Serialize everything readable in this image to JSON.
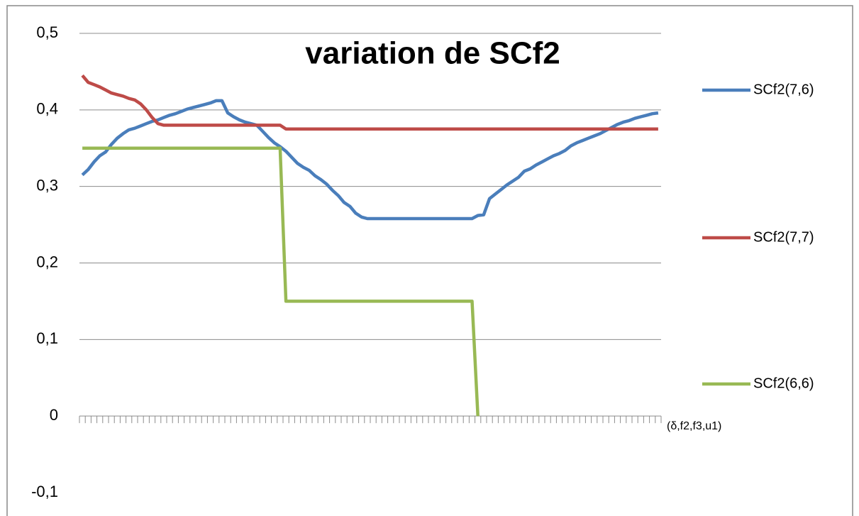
{
  "chart_data": {
    "type": "line",
    "title": "variation de SCf2",
    "x_label": "(δ,f2,f3,u1)",
    "categories": [
      null,
      null,
      null,
      null,
      null,
      null,
      null,
      null,
      null,
      null,
      null,
      null,
      null,
      null,
      null,
      null,
      null,
      null,
      null,
      null,
      null,
      null,
      null,
      null,
      null,
      null,
      null,
      null,
      null,
      null,
      null,
      null,
      null,
      null,
      null,
      null,
      null,
      null,
      null,
      null,
      null,
      null,
      null,
      null,
      null,
      null,
      null,
      null,
      null,
      null,
      null,
      null,
      null,
      null,
      null,
      null,
      null,
      null,
      null,
      null,
      null,
      null,
      null,
      null,
      null,
      null,
      null,
      null,
      null,
      null,
      null,
      null,
      null,
      null,
      null,
      null,
      null,
      null,
      null,
      null,
      null,
      null,
      null,
      null,
      null,
      null,
      null,
      null,
      null,
      null,
      null,
      null,
      null,
      null,
      null,
      null,
      null,
      null,
      null,
      null
    ],
    "ylim": [
      -0.1,
      0.5
    ],
    "yticks": [
      {
        "value": -0.1,
        "label": "-0,1"
      },
      0,
      {
        "value": 0.1,
        "label": "0,1"
      },
      {
        "value": 0.2,
        "label": "0,2"
      },
      {
        "value": 0.3,
        "label": "0,3"
      },
      {
        "value": 0.4,
        "label": "0,4"
      },
      {
        "value": 0.5,
        "label": "0,5"
      }
    ],
    "grid": true,
    "legend": "right",
    "series": [
      {
        "name": "SCf2(7,6)",
        "color": "#4a7ebb",
        "values": [
          0.315,
          0.322,
          0.332,
          0.34,
          0.345,
          0.355,
          0.363,
          0.369,
          0.374,
          0.376,
          0.379,
          0.382,
          0.385,
          0.387,
          0.39,
          0.393,
          0.395,
          0.398,
          0.401,
          0.403,
          0.405,
          0.407,
          0.409,
          0.412,
          0.412,
          0.396,
          0.391,
          0.387,
          0.384,
          0.382,
          0.38,
          0.372,
          0.364,
          0.357,
          0.352,
          0.346,
          0.338,
          0.33,
          0.325,
          0.321,
          0.314,
          0.309,
          0.303,
          0.295,
          0.288,
          0.279,
          0.274,
          0.265,
          0.26,
          0.258,
          0.258,
          0.258,
          0.258,
          0.258,
          0.258,
          0.258,
          0.258,
          0.258,
          0.258,
          0.258,
          0.258,
          0.258,
          0.258,
          0.258,
          0.258,
          0.258,
          0.258,
          0.258,
          0.262,
          0.263,
          0.284,
          0.29,
          0.296,
          0.302,
          0.307,
          0.312,
          0.32,
          0.323,
          0.328,
          0.332,
          0.336,
          0.34,
          0.343,
          0.347,
          0.353,
          0.357,
          0.36,
          0.363,
          0.366,
          0.369,
          0.373,
          0.377,
          0.381,
          0.384,
          0.386,
          0.389,
          0.391,
          0.393,
          0.395,
          0.396
        ]
      },
      {
        "name": "SCf2(7,7)",
        "color": "#be4b48",
        "values": [
          0.445,
          0.436,
          0.433,
          0.43,
          0.426,
          0.422,
          0.42,
          0.418,
          0.415,
          0.413,
          0.408,
          0.4,
          0.39,
          0.382,
          0.38,
          0.38,
          0.38,
          0.38,
          0.38,
          0.38,
          0.38,
          0.38,
          0.38,
          0.38,
          0.38,
          0.38,
          0.38,
          0.38,
          0.38,
          0.38,
          0.38,
          0.38,
          0.38,
          0.38,
          0.38,
          0.375,
          0.375,
          0.375,
          0.375,
          0.375,
          0.375,
          0.375,
          0.375,
          0.375,
          0.375,
          0.375,
          0.375,
          0.375,
          0.375,
          0.375,
          0.375,
          0.375,
          0.375,
          0.375,
          0.375,
          0.375,
          0.375,
          0.375,
          0.375,
          0.375,
          0.375,
          0.375,
          0.375,
          0.375,
          0.375,
          0.375,
          0.375,
          0.375,
          0.375,
          0.375,
          0.375,
          0.375,
          0.375,
          0.375,
          0.375,
          0.375,
          0.375,
          0.375,
          0.375,
          0.375,
          0.375,
          0.375,
          0.375,
          0.375,
          0.375,
          0.375,
          0.375,
          0.375,
          0.375,
          0.375,
          0.375,
          0.375,
          0.375,
          0.375,
          0.375,
          0.375,
          0.375,
          0.375,
          0.375,
          0.375
        ]
      },
      {
        "name": "SCf2(6,6)",
        "color": "#98b954",
        "values": [
          0.35,
          0.35,
          0.35,
          0.35,
          0.35,
          0.35,
          0.35,
          0.35,
          0.35,
          0.35,
          0.35,
          0.35,
          0.35,
          0.35,
          0.35,
          0.35,
          0.35,
          0.35,
          0.35,
          0.35,
          0.35,
          0.35,
          0.35,
          0.35,
          0.35,
          0.35,
          0.35,
          0.35,
          0.35,
          0.35,
          0.35,
          0.35,
          0.35,
          0.35,
          0.35,
          0.15,
          0.15,
          0.15,
          0.15,
          0.15,
          0.15,
          0.15,
          0.15,
          0.15,
          0.15,
          0.15,
          0.15,
          0.15,
          0.15,
          0.15,
          0.15,
          0.15,
          0.15,
          0.15,
          0.15,
          0.15,
          0.15,
          0.15,
          0.15,
          0.15,
          0.15,
          0.15,
          0.15,
          0.15,
          0.15,
          0.15,
          0.15,
          0.15,
          0,
          null,
          null,
          null,
          null,
          null,
          null,
          null,
          null,
          null,
          null,
          null,
          null,
          null,
          null,
          null,
          null,
          null,
          null,
          null,
          null,
          null,
          null,
          null,
          null,
          null,
          null,
          null,
          null,
          null,
          null,
          null
        ]
      }
    ]
  }
}
